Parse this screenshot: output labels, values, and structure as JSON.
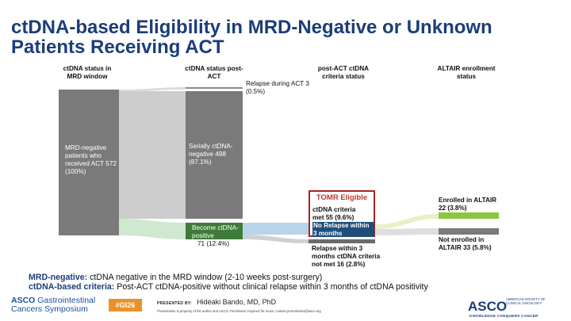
{
  "title": "ctDNA-based Eligibility in MRD-Negative or Unknown Patients Receiving ACT",
  "columns": {
    "col1": "ctDNA status in MRD window",
    "col2": "ctDNA status post-ACT",
    "col3": "post-ACT ctDNA criteria status",
    "col4": "ALTAIR enrollment status"
  },
  "nodes": {
    "mrd_negative": "MRD-negative patients who received ACT 572 (100%)",
    "relapse_during_act": "Relapse during ACT 3 (0.5%)",
    "serially_negative": "Serially ctDNA-negative 498 (87.1%)",
    "become_positive": "Become ctDNA-positive",
    "become_positive_count": "71 (12.4%)",
    "relapse_within": "Relapse within 3 months ctDNA criteria not met 16 (2.8%)",
    "enrolled": "Enrolled in ALTAIR 22 (3.8%)",
    "not_enrolled": "Not enrolled in ALTAIR 33 (5.8%)"
  },
  "tomr": {
    "title": "TOMR Eligible",
    "criteria_met": "ctDNA criteria met 55 (9.6%)",
    "no_relapse": "No Relapse within 3 months"
  },
  "definitions": {
    "mrd_term": "MRD-negative:",
    "mrd_def": " ctDNA negative in the MRD window (2-10 weeks post-surgery)",
    "criteria_term": "ctDNA-based criteria:",
    "criteria_def": " Post-ACT ctDNA-positive without clinical relapse within 3 months of ctDNA positivity"
  },
  "footer": {
    "left_line1a": "ASCO",
    "left_line1b": " Gastrointestinal",
    "left_line2": "Cancers Symposium",
    "hashtag": "#GI26",
    "presented_by": "PRESENTED BY:",
    "presenter": "Hideaki Bando, MD, PhD",
    "disclaimer": "Presentation is property of the author and ASCO. Permission required for reuse; contact permissions@asco.org",
    "right_logo": "ASCO",
    "right_sub": "AMERICAN SOCIETY OF CLINICAL ONCOLOGY",
    "right_tag": "KNOWLEDGE CONQUERS CANCER"
  },
  "colors": {
    "title": "#1b3d7a",
    "node_gray": "#7a7a7a",
    "node_green": "#3e7b3a",
    "enrolled_green": "#8cc63f",
    "tomr_red": "#a22222",
    "highlight_blue": "#1f4e79"
  }
}
